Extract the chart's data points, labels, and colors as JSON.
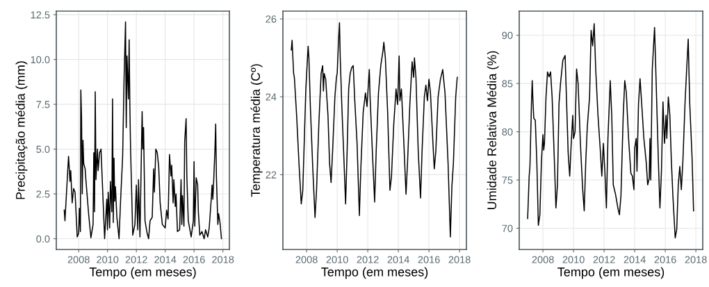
{
  "chart_data": [
    {
      "type": "line",
      "xlabel": "Tempo (em meses)",
      "ylabel": "Precipitação média (mm)",
      "xlim": [
        2006.45,
        2018.45
      ],
      "xticks": [
        2008,
        2010,
        2012,
        2014,
        2016,
        2018
      ],
      "ylim": [
        -0.6,
        12.7
      ],
      "yticks": [
        {
          "value": 0,
          "label": "0.0"
        },
        {
          "value": 2.5,
          "label": "2.5"
        },
        {
          "value": 5,
          "label": "5.0"
        },
        {
          "value": 7.5,
          "label": "7.5"
        },
        {
          "value": 10,
          "label": "10.0"
        },
        {
          "value": 12.5,
          "label": "12.5"
        }
      ],
      "grid": true,
      "legend": false,
      "series": [
        {
          "color": "#000000",
          "x": [
            2007.0,
            2007.05,
            2007.25,
            2007.3,
            2007.4,
            2007.45,
            2007.55,
            2007.65,
            2007.75,
            2007.9,
            2008.0,
            2008.05,
            2008.12,
            2008.15,
            2008.2,
            2008.25,
            2008.3,
            2008.35,
            2008.45,
            2008.5,
            2008.7,
            2008.85,
            2009.0,
            2009.05,
            2009.1,
            2009.15,
            2009.2,
            2009.3,
            2009.35,
            2009.45,
            2009.55,
            2009.65,
            2009.75,
            2009.8,
            2009.95,
            2010.0,
            2010.05,
            2010.15,
            2010.2,
            2010.3,
            2010.35,
            2010.4,
            2010.45,
            2010.5,
            2010.55,
            2010.65,
            2010.8,
            2010.9,
            2011.05,
            2011.15,
            2011.25,
            2011.3,
            2011.35,
            2011.45,
            2011.5,
            2011.55,
            2011.6,
            2011.75,
            2011.9,
            2012.0,
            2012.1,
            2012.15,
            2012.25,
            2012.4,
            2012.45,
            2012.5,
            2012.6,
            2012.75,
            2012.85,
            2012.95,
            2013.1,
            2013.2,
            2013.25,
            2013.35,
            2013.45,
            2013.55,
            2013.65,
            2013.8,
            2014.0,
            2014.1,
            2014.2,
            2014.3,
            2014.4,
            2014.45,
            2014.55,
            2014.6,
            2014.7,
            2014.75,
            2014.85,
            2015.0,
            2015.1,
            2015.15,
            2015.2,
            2015.3,
            2015.35,
            2015.45,
            2015.5,
            2015.6,
            2015.8,
            2015.95,
            2016.0,
            2016.05,
            2016.15,
            2016.25,
            2016.3,
            2016.4,
            2016.55,
            2016.7,
            2016.8,
            2016.95,
            2017.05,
            2017.2,
            2017.25,
            2017.3,
            2017.35,
            2017.45,
            2017.5,
            2017.55,
            2017.65,
            2017.7,
            2017.8,
            2017.9
          ],
          "values": [
            1.6,
            1.0,
            3.9,
            4.6,
            3.2,
            3.8,
            2.0,
            2.8,
            2.6,
            0.1,
            0.3,
            1.7,
            0.4,
            8.3,
            6.8,
            2.5,
            5.5,
            4.2,
            3.9,
            3.3,
            1.3,
            0.05,
            0.8,
            4.8,
            1.5,
            8.2,
            3.3,
            5.0,
            3.8,
            4.8,
            5.0,
            3.0,
            1.0,
            0.0,
            2.2,
            0.5,
            2.6,
            0.6,
            3.2,
            1.5,
            7.8,
            0.9,
            4.5,
            2.1,
            2.9,
            1.2,
            0.0,
            2.0,
            4.6,
            9.0,
            12.1,
            6.2,
            10.2,
            7.8,
            11.1,
            7.4,
            5.0,
            0.2,
            0.8,
            3.0,
            0.5,
            3.3,
            0.1,
            7.1,
            5.0,
            6.2,
            1.0,
            0.3,
            0.0,
            1.0,
            1.2,
            3.9,
            2.6,
            5.0,
            4.8,
            4.0,
            2.0,
            0.8,
            0.6,
            1.6,
            1.1,
            4.7,
            3.5,
            4.1,
            2.0,
            3.3,
            1.8,
            2.5,
            0.4,
            0.5,
            3.3,
            0.8,
            2.4,
            0.7,
            5.4,
            6.7,
            3.5,
            1.0,
            0.1,
            1.0,
            4.3,
            0.7,
            3.4,
            3.0,
            1.5,
            0.2,
            0.4,
            0.0,
            0.5,
            0.1,
            0.6,
            2.3,
            3.0,
            2.2,
            3.0,
            5.0,
            6.4,
            3.5,
            0.8,
            1.4,
            0.9,
            0.0
          ]
        }
      ]
    },
    {
      "type": "line",
      "xlabel": "Tempo (em meses)",
      "ylabel": "Temperatura média (Cº)",
      "xlim": [
        2006.45,
        2018.45
      ],
      "xticks": [
        2008,
        2010,
        2012,
        2014,
        2016,
        2018
      ],
      "ylim": [
        20.08,
        26.2
      ],
      "yticks": [
        22,
        24,
        26
      ],
      "grid": true,
      "legend": false,
      "series": [
        {
          "color": "#000000",
          "x": [
            2007.0,
            2007.05,
            2007.15,
            2007.2,
            2007.35,
            2007.5,
            2007.65,
            2007.75,
            2007.85,
            2007.95,
            2008.1,
            2008.15,
            2008.25,
            2008.4,
            2008.55,
            2008.65,
            2008.8,
            2008.95,
            2009.05,
            2009.1,
            2009.15,
            2009.25,
            2009.4,
            2009.5,
            2009.6,
            2009.7,
            2009.85,
            2009.95,
            2010.0,
            2010.1,
            2010.15,
            2010.2,
            2010.3,
            2010.45,
            2010.55,
            2010.65,
            2010.75,
            2010.85,
            2010.95,
            2011.05,
            2011.15,
            2011.3,
            2011.45,
            2011.55,
            2011.7,
            2011.85,
            2011.95,
            2012.1,
            2012.15,
            2012.3,
            2012.45,
            2012.55,
            2012.7,
            2012.85,
            2013.0,
            2013.05,
            2013.15,
            2013.3,
            2013.45,
            2013.55,
            2013.7,
            2013.85,
            2013.95,
            2014.05,
            2014.1,
            2014.2,
            2014.35,
            2014.5,
            2014.6,
            2014.75,
            2014.9,
            2015.0,
            2015.05,
            2015.15,
            2015.3,
            2015.45,
            2015.55,
            2015.7,
            2015.8,
            2015.9,
            2016.0,
            2016.1,
            2016.25,
            2016.35,
            2016.45,
            2016.6,
            2016.75,
            2016.9,
            2017.05,
            2017.25,
            2017.4,
            2017.5,
            2017.6,
            2017.75,
            2017.85
          ],
          "values": [
            25.2,
            25.45,
            24.6,
            24.5,
            23.5,
            22.3,
            21.25,
            21.6,
            22.9,
            24.2,
            25.3,
            25.0,
            23.7,
            22.2,
            20.9,
            21.6,
            23.3,
            24.6,
            24.8,
            24.15,
            24.6,
            24.45,
            23.5,
            22.3,
            21.8,
            22.6,
            24.0,
            24.5,
            24.6,
            25.55,
            25.9,
            25.0,
            23.8,
            22.3,
            21.25,
            22.6,
            24.2,
            24.6,
            24.75,
            24.8,
            23.9,
            22.8,
            20.95,
            22.2,
            23.6,
            24.1,
            23.75,
            24.7,
            24.0,
            22.6,
            21.3,
            22.6,
            24.1,
            24.8,
            25.2,
            25.4,
            25.0,
            23.6,
            21.6,
            21.95,
            23.3,
            24.2,
            23.8,
            25.05,
            23.9,
            24.2,
            22.9,
            21.5,
            22.3,
            23.8,
            24.9,
            24.5,
            25.0,
            24.5,
            22.6,
            21.4,
            22.6,
            24.0,
            24.3,
            23.9,
            24.45,
            24.1,
            22.9,
            22.15,
            22.6,
            24.0,
            24.45,
            24.7,
            24.1,
            22.3,
            20.4,
            21.7,
            22.3,
            24.0,
            24.5
          ]
        }
      ]
    },
    {
      "type": "line",
      "xlabel": "Tempo (em meses)",
      "ylabel": "Umidade Relativa Média (%)",
      "xlim": [
        2006.45,
        2018.45
      ],
      "xticks": [
        2008,
        2010,
        2012,
        2014,
        2016,
        2018
      ],
      "ylim": [
        67.8,
        92.5
      ],
      "yticks": [
        70,
        75,
        80,
        85,
        90
      ],
      "grid": true,
      "legend": false,
      "series": [
        {
          "color": "#000000",
          "x": [
            2007.0,
            2007.1,
            2007.15,
            2007.25,
            2007.3,
            2007.35,
            2007.4,
            2007.5,
            2007.6,
            2007.7,
            2007.8,
            2007.9,
            2008.0,
            2008.05,
            2008.1,
            2008.2,
            2008.3,
            2008.4,
            2008.5,
            2008.6,
            2008.75,
            2008.85,
            2008.95,
            2009.05,
            2009.15,
            2009.3,
            2009.45,
            2009.55,
            2009.65,
            2009.75,
            2009.85,
            2009.95,
            2010.0,
            2010.1,
            2010.2,
            2010.3,
            2010.45,
            2010.6,
            2010.7,
            2010.8,
            2010.9,
            2011.05,
            2011.15,
            2011.25,
            2011.35,
            2011.45,
            2011.6,
            2011.75,
            2011.85,
            2011.95,
            2012.05,
            2012.15,
            2012.25,
            2012.4,
            2012.5,
            2012.6,
            2012.75,
            2012.9,
            2013.0,
            2013.1,
            2013.25,
            2013.35,
            2013.45,
            2013.6,
            2013.75,
            2013.85,
            2013.95,
            2014.0,
            2014.1,
            2014.15,
            2014.25,
            2014.35,
            2014.45,
            2014.6,
            2014.75,
            2014.85,
            2014.95,
            2015.0,
            2015.05,
            2015.15,
            2015.3,
            2015.4,
            2015.55,
            2015.65,
            2015.75,
            2015.85,
            2015.95,
            2016.05,
            2016.1,
            2016.2,
            2016.3,
            2016.4,
            2016.5,
            2016.65,
            2016.75,
            2016.85,
            2016.95,
            2017.05,
            2017.15,
            2017.3,
            2017.4,
            2017.5,
            2017.6,
            2017.75,
            2017.85
          ],
          "values": [
            71.0,
            75.4,
            76.4,
            82.9,
            85.3,
            83.1,
            81.4,
            81.2,
            76.9,
            70.3,
            71.4,
            76.9,
            79.7,
            78.1,
            78.8,
            83.6,
            86.2,
            85.7,
            86.2,
            83.6,
            76.9,
            72.1,
            74.5,
            82.9,
            85.0,
            87.4,
            87.9,
            82.9,
            77.8,
            75.4,
            78.8,
            81.7,
            79.3,
            80.0,
            86.5,
            85.0,
            78.8,
            74.0,
            71.8,
            76.9,
            80.5,
            83.6,
            90.5,
            88.9,
            91.2,
            86.5,
            81.7,
            78.1,
            75.4,
            78.8,
            75.9,
            72.1,
            79.3,
            85.3,
            81.7,
            74.5,
            73.5,
            72.1,
            71.4,
            73.3,
            81.7,
            85.3,
            84.1,
            79.3,
            75.7,
            75.4,
            74.0,
            78.3,
            79.3,
            75.9,
            82.9,
            85.5,
            83.1,
            79.3,
            76.9,
            74.5,
            75.2,
            79.3,
            75.0,
            86.5,
            90.8,
            85.3,
            76.9,
            72.1,
            75.9,
            83.1,
            78.8,
            81.7,
            79.3,
            83.6,
            81.7,
            76.9,
            73.3,
            69.0,
            69.9,
            74.5,
            76.4,
            74.0,
            76.9,
            83.3,
            86.5,
            89.6,
            82.9,
            77.4,
            71.8
          ]
        }
      ]
    }
  ]
}
